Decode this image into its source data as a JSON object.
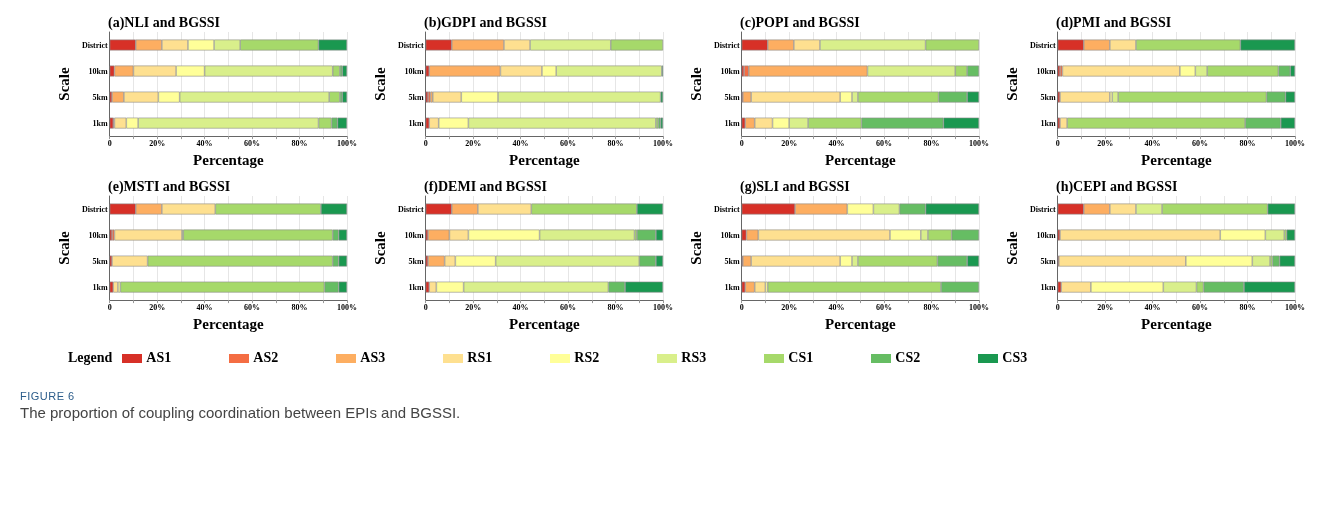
{
  "chart_data": [
    {
      "type": "bar",
      "orientation": "horizontal",
      "stacked": true,
      "title": "(a)NLI and BGSSI",
      "xlabel": "Percentage",
      "ylabel": "Scale",
      "categories": [
        "District",
        "10km",
        "5km",
        "1km"
      ],
      "xlim": [
        0,
        100
      ],
      "xticks": [
        {
          "value": 0,
          "label": "0"
        },
        {
          "value": 10,
          "label": null
        },
        {
          "value": 20,
          "label": "20%"
        },
        {
          "value": 30,
          "label": null
        },
        {
          "value": 40,
          "label": "40%"
        },
        {
          "value": 50,
          "label": null
        },
        {
          "value": 60,
          "label": "60%"
        },
        {
          "value": 70,
          "label": null
        },
        {
          "value": 80,
          "label": "80%"
        },
        {
          "value": 90,
          "label": null
        },
        {
          "value": 100,
          "label": "100%"
        }
      ],
      "grid": "x",
      "legend": "bottom",
      "legend_title": "Legend",
      "annotations": [
        "FIGURE 6",
        "The proportion of coupling coordination between EPIs and BGSSI."
      ],
      "series": [
        {
          "name": "AS1",
          "color": "#d73027",
          "values": [
            11,
            2,
            1,
            1.5
          ]
        },
        {
          "name": "AS2",
          "color": "#f46d43",
          "values": [
            0,
            0,
            0,
            0.5
          ]
        },
        {
          "name": "AS3",
          "color": "#fdae61",
          "values": [
            11,
            8,
            5,
            0
          ]
        },
        {
          "name": "RS1",
          "color": "#fee090",
          "values": [
            11,
            18,
            14.5,
            5
          ]
        },
        {
          "name": "RS2",
          "color": "#ffff99",
          "values": [
            11,
            12,
            9,
            5
          ]
        },
        {
          "name": "RS3",
          "color": "#d9ef8b",
          "values": [
            11,
            54,
            63,
            76
          ]
        },
        {
          "name": "CS1",
          "color": "#a6d96a",
          "values": [
            33,
            3,
            4.5,
            5.5
          ]
        },
        {
          "name": "CS2",
          "color": "#66bd63",
          "values": [
            0,
            1,
            1,
            2.5
          ]
        },
        {
          "name": "CS3",
          "color": "#1a9850",
          "values": [
            12,
            2,
            2,
            4
          ]
        }
      ]
    },
    {
      "type": "bar",
      "orientation": "horizontal",
      "stacked": true,
      "title": "(b)GDPI and BGSSI",
      "xlabel": "Percentage",
      "ylabel": "Scale",
      "categories": [
        "District",
        "10km",
        "5km",
        "1km"
      ],
      "xlim": [
        0,
        100
      ],
      "xticks": [
        {
          "value": 0,
          "label": "0"
        },
        {
          "value": 10,
          "label": null
        },
        {
          "value": 20,
          "label": "20%"
        },
        {
          "value": 30,
          "label": null
        },
        {
          "value": 40,
          "label": "40%"
        },
        {
          "value": 50,
          "label": null
        },
        {
          "value": 60,
          "label": "60%"
        },
        {
          "value": 70,
          "label": null
        },
        {
          "value": 80,
          "label": "80%"
        },
        {
          "value": 90,
          "label": null
        },
        {
          "value": 100,
          "label": "100%"
        }
      ],
      "grid": "x",
      "series": [
        {
          "color": "#d73027",
          "values": [
            11,
            1.5,
            1,
            1.5
          ]
        },
        {
          "color": "#f46d43",
          "values": [
            0,
            0,
            1,
            0
          ]
        },
        {
          "color": "#fdae61",
          "values": [
            22,
            30,
            1,
            0
          ]
        },
        {
          "color": "#fee090",
          "values": [
            11,
            17.5,
            12,
            4
          ]
        },
        {
          "color": "#ffff99",
          "values": [
            0,
            6,
            15.5,
            12.5
          ]
        },
        {
          "color": "#d9ef8b",
          "values": [
            34,
            44.5,
            68.5,
            79
          ]
        },
        {
          "color": "#a6d96a",
          "values": [
            22,
            0,
            0,
            1
          ]
        },
        {
          "color": "#66bd63",
          "values": [
            0,
            0,
            0,
            1
          ]
        },
        {
          "color": "#1a9850",
          "values": [
            0,
            0.5,
            1,
            1
          ]
        }
      ]
    },
    {
      "type": "bar",
      "orientation": "horizontal",
      "stacked": true,
      "title": "(c)POPI and BGSSI",
      "xlabel": "Percentage",
      "ylabel": "Scale",
      "categories": [
        "District",
        "10km",
        "5km",
        "1km"
      ],
      "xlim": [
        0,
        100
      ],
      "xticks": [
        {
          "value": 0,
          "label": "0"
        },
        {
          "value": 10,
          "label": null
        },
        {
          "value": 20,
          "label": "20%"
        },
        {
          "value": 30,
          "label": null
        },
        {
          "value": 40,
          "label": "40%"
        },
        {
          "value": 50,
          "label": null
        },
        {
          "value": 60,
          "label": "60%"
        },
        {
          "value": 70,
          "label": null
        },
        {
          "value": 80,
          "label": "80%"
        },
        {
          "value": 90,
          "label": null
        },
        {
          "value": 100,
          "label": "100%"
        }
      ],
      "grid": "x",
      "series": [
        {
          "color": "#d73027",
          "values": [
            11,
            1,
            0.5,
            1.5
          ]
        },
        {
          "color": "#f46d43",
          "values": [
            0,
            2,
            0,
            0
          ]
        },
        {
          "color": "#fdae61",
          "values": [
            11,
            50,
            3.5,
            4
          ]
        },
        {
          "color": "#fee090",
          "values": [
            11,
            0,
            37.5,
            7.5
          ]
        },
        {
          "color": "#ffff99",
          "values": [
            0,
            0,
            5,
            7
          ]
        },
        {
          "color": "#d9ef8b",
          "values": [
            44.5,
            37,
            2.5,
            8
          ]
        },
        {
          "color": "#a6d96a",
          "values": [
            22.5,
            5,
            34,
            22.5
          ]
        },
        {
          "color": "#66bd63",
          "values": [
            0,
            5,
            12,
            34.5
          ]
        },
        {
          "color": "#1a9850",
          "values": [
            0,
            0,
            5,
            15
          ]
        }
      ]
    },
    {
      "type": "bar",
      "orientation": "horizontal",
      "stacked": true,
      "title": "(d)PMI and BGSSI",
      "xlabel": "Percentage",
      "ylabel": "Scale",
      "categories": [
        "District",
        "10km",
        "5km",
        "1km"
      ],
      "xlim": [
        0,
        100
      ],
      "xticks": [
        {
          "value": 0,
          "label": "0"
        },
        {
          "value": 10,
          "label": null
        },
        {
          "value": 20,
          "label": "20%"
        },
        {
          "value": 30,
          "label": null
        },
        {
          "value": 40,
          "label": "40%"
        },
        {
          "value": 50,
          "label": null
        },
        {
          "value": 60,
          "label": "60%"
        },
        {
          "value": 70,
          "label": null
        },
        {
          "value": 80,
          "label": "80%"
        },
        {
          "value": 90,
          "label": null
        },
        {
          "value": 100,
          "label": "100%"
        }
      ],
      "grid": "x",
      "series": [
        {
          "color": "#d73027",
          "values": [
            11,
            1,
            1,
            1
          ]
        },
        {
          "color": "#f46d43",
          "values": [
            0,
            1,
            0,
            0
          ]
        },
        {
          "color": "#fdae61",
          "values": [
            11,
            0,
            0,
            0
          ]
        },
        {
          "color": "#fee090",
          "values": [
            11,
            49.5,
            21,
            3
          ]
        },
        {
          "color": "#ffff99",
          "values": [
            0,
            6.5,
            1,
            0
          ]
        },
        {
          "color": "#d9ef8b",
          "values": [
            0,
            5,
            2.5,
            0
          ]
        },
        {
          "color": "#a6d96a",
          "values": [
            44,
            30,
            62.5,
            75
          ]
        },
        {
          "color": "#66bd63",
          "values": [
            0,
            5,
            8,
            15
          ]
        },
        {
          "color": "#1a9850",
          "values": [
            23,
            2,
            4,
            6
          ]
        }
      ]
    },
    {
      "type": "bar",
      "orientation": "horizontal",
      "stacked": true,
      "title": "(e)MSTI and BGSSI",
      "xlabel": "Percentage",
      "ylabel": "Scale",
      "categories": [
        "District",
        "10km",
        "5km",
        "1km"
      ],
      "xlim": [
        0,
        100
      ],
      "xticks": [
        {
          "value": 0,
          "label": "0"
        },
        {
          "value": 10,
          "label": null
        },
        {
          "value": 20,
          "label": "20%"
        },
        {
          "value": 30,
          "label": null
        },
        {
          "value": 40,
          "label": "40%"
        },
        {
          "value": 50,
          "label": null
        },
        {
          "value": 60,
          "label": "60%"
        },
        {
          "value": 70,
          "label": null
        },
        {
          "value": 80,
          "label": "80%"
        },
        {
          "value": 90,
          "label": null
        },
        {
          "value": 100,
          "label": "100%"
        }
      ],
      "grid": "x",
      "series": [
        {
          "color": "#d73027",
          "values": [
            11,
            1,
            1,
            1.5
          ]
        },
        {
          "color": "#f46d43",
          "values": [
            0,
            1,
            0,
            0
          ]
        },
        {
          "color": "#fdae61",
          "values": [
            11,
            0,
            0,
            0
          ]
        },
        {
          "color": "#fee090",
          "values": [
            22.5,
            28.5,
            15,
            2
          ]
        },
        {
          "color": "#ffff99",
          "values": [
            0,
            0,
            0,
            1
          ]
        },
        {
          "color": "#d9ef8b",
          "values": [
            0,
            0.5,
            0,
            0
          ]
        },
        {
          "color": "#a6d96a",
          "values": [
            44.5,
            63,
            78,
            86
          ]
        },
        {
          "color": "#66bd63",
          "values": [
            0,
            2.5,
            2.5,
            6
          ]
        },
        {
          "color": "#1a9850",
          "values": [
            11,
            3.5,
            3.5,
            3.5
          ]
        }
      ]
    },
    {
      "type": "bar",
      "orientation": "horizontal",
      "stacked": true,
      "title": "(f)DEMI and BGSSI",
      "xlabel": "Percentage",
      "ylabel": "Scale",
      "categories": [
        "District",
        "10km",
        "5km",
        "1km"
      ],
      "xlim": [
        0,
        100
      ],
      "xticks": [
        {
          "value": 0,
          "label": "0"
        },
        {
          "value": 10,
          "label": null
        },
        {
          "value": 20,
          "label": "20%"
        },
        {
          "value": 30,
          "label": null
        },
        {
          "value": 40,
          "label": "40%"
        },
        {
          "value": 50,
          "label": null
        },
        {
          "value": 60,
          "label": "60%"
        },
        {
          "value": 70,
          "label": null
        },
        {
          "value": 80,
          "label": "80%"
        },
        {
          "value": 90,
          "label": null
        },
        {
          "value": 100,
          "label": "100%"
        }
      ],
      "grid": "x",
      "series": [
        {
          "color": "#d73027",
          "values": [
            11,
            1,
            1,
            1.5
          ]
        },
        {
          "color": "#f46d43",
          "values": [
            0,
            0,
            0,
            0
          ]
        },
        {
          "color": "#fdae61",
          "values": [
            11,
            9,
            7,
            0
          ]
        },
        {
          "color": "#fee090",
          "values": [
            22.5,
            8,
            4.5,
            3
          ]
        },
        {
          "color": "#ffff99",
          "values": [
            0,
            30,
            17,
            11.5
          ]
        },
        {
          "color": "#d9ef8b",
          "values": [
            0,
            40,
            60.5,
            61
          ]
        },
        {
          "color": "#a6d96a",
          "values": [
            44.5,
            1,
            0,
            0
          ]
        },
        {
          "color": "#66bd63",
          "values": [
            0,
            8,
            7,
            7
          ]
        },
        {
          "color": "#1a9850",
          "values": [
            11,
            3,
            3,
            16
          ]
        }
      ]
    },
    {
      "type": "bar",
      "orientation": "horizontal",
      "stacked": true,
      "title": "(g)SLI and BGSSI",
      "xlabel": "Percentage",
      "ylabel": "Scale",
      "categories": [
        "District",
        "10km",
        "5km",
        "1km"
      ],
      "xlim": [
        0,
        100
      ],
      "xticks": [
        {
          "value": 0,
          "label": "0"
        },
        {
          "value": 10,
          "label": null
        },
        {
          "value": 20,
          "label": "20%"
        },
        {
          "value": 30,
          "label": null
        },
        {
          "value": 40,
          "label": "40%"
        },
        {
          "value": 50,
          "label": null
        },
        {
          "value": 60,
          "label": "60%"
        },
        {
          "value": 70,
          "label": null
        },
        {
          "value": 80,
          "label": "80%"
        },
        {
          "value": 90,
          "label": null
        },
        {
          "value": 100,
          "label": "100%"
        }
      ],
      "grid": "x",
      "series": [
        {
          "color": "#d73027",
          "values": [
            22.5,
            2,
            0.5,
            1.5
          ]
        },
        {
          "color": "#f46d43",
          "values": [
            0,
            0,
            0,
            0
          ]
        },
        {
          "color": "#fdae61",
          "values": [
            22,
            5,
            3.5,
            4
          ]
        },
        {
          "color": "#fee090",
          "values": [
            0,
            55.5,
            37.5,
            4.5
          ]
        },
        {
          "color": "#ffff99",
          "values": [
            11,
            13,
            5,
            1
          ]
        },
        {
          "color": "#d9ef8b",
          "values": [
            11,
            3,
            2.5,
            0
          ]
        },
        {
          "color": "#a6d96a",
          "values": [
            0,
            10,
            33.5,
            73
          ]
        },
        {
          "color": "#66bd63",
          "values": [
            11,
            11.5,
            12.5,
            16
          ]
        },
        {
          "color": "#1a9850",
          "values": [
            22.5,
            0,
            5,
            0
          ]
        }
      ]
    },
    {
      "type": "bar",
      "orientation": "horizontal",
      "stacked": true,
      "title": "(h)CEPI and BGSSI",
      "xlabel": "Percentage",
      "ylabel": "Scale",
      "categories": [
        "District",
        "10km",
        "5km",
        "1km"
      ],
      "xlim": [
        0,
        100
      ],
      "xticks": [
        {
          "value": 0,
          "label": "0"
        },
        {
          "value": 10,
          "label": null
        },
        {
          "value": 20,
          "label": "20%"
        },
        {
          "value": 30,
          "label": null
        },
        {
          "value": 40,
          "label": "40%"
        },
        {
          "value": 50,
          "label": null
        },
        {
          "value": 60,
          "label": "60%"
        },
        {
          "value": 70,
          "label": null
        },
        {
          "value": 80,
          "label": "80%"
        },
        {
          "value": 90,
          "label": null
        },
        {
          "value": 100,
          "label": "100%"
        }
      ],
      "grid": "x",
      "series": [
        {
          "color": "#d73027",
          "values": [
            11,
            1,
            0.5,
            1.5
          ]
        },
        {
          "color": "#f46d43",
          "values": [
            0,
            0,
            0,
            0
          ]
        },
        {
          "color": "#fdae61",
          "values": [
            11,
            0,
            0,
            0
          ]
        },
        {
          "color": "#fee090",
          "values": [
            11,
            67.5,
            53.5,
            12.5
          ]
        },
        {
          "color": "#ffff99",
          "values": [
            0,
            19,
            28,
            30.5
          ]
        },
        {
          "color": "#d9ef8b",
          "values": [
            11,
            8,
            7.5,
            14
          ]
        },
        {
          "color": "#a6d96a",
          "values": [
            44.5,
            1,
            1,
            3
          ]
        },
        {
          "color": "#66bd63",
          "values": [
            0,
            0,
            3,
            17
          ]
        },
        {
          "color": "#1a9850",
          "values": [
            11.5,
            3.5,
            6.5,
            21.5
          ]
        }
      ]
    }
  ]
}
